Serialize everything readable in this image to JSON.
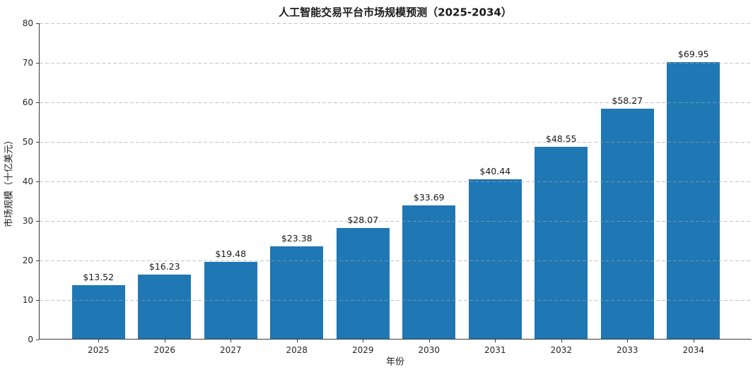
{
  "chart_data": {
    "type": "bar",
    "title": "人工智能交易平台市场规模预测（2025-2034）",
    "xlabel": "年份",
    "ylabel": "市场规模（十亿美元）",
    "categories": [
      "2025",
      "2026",
      "2027",
      "2028",
      "2029",
      "2030",
      "2031",
      "2032",
      "2033",
      "2034"
    ],
    "values": [
      13.52,
      16.23,
      19.48,
      23.38,
      28.07,
      33.69,
      40.44,
      48.55,
      58.27,
      69.95
    ],
    "bar_labels": [
      "$13.52",
      "$16.23",
      "$19.48",
      "$23.38",
      "$28.07",
      "$33.69",
      "$40.44",
      "$48.55",
      "$58.27",
      "$69.95"
    ],
    "yticks": [
      0,
      10,
      20,
      30,
      40,
      50,
      60,
      70,
      80
    ],
    "ylim": [
      0,
      80
    ],
    "bar_color": "#1f77b4",
    "grid": "horizontal-dashed",
    "legend": "none"
  }
}
